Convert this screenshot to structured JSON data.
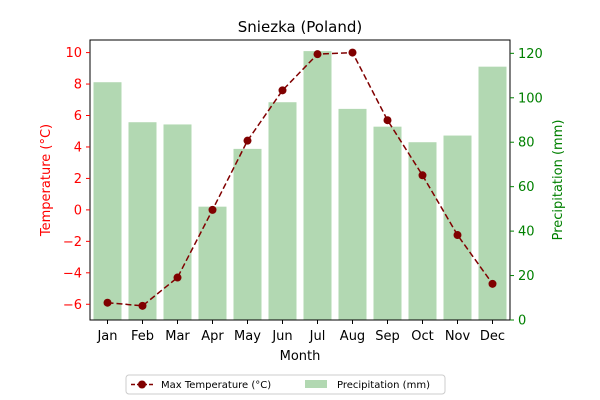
{
  "chart_data": {
    "type": "bar+line",
    "title": "Sniezka (Poland)",
    "xlabel": "Month",
    "ylabel_left": "Temperature (°C)",
    "ylabel_right": "Precipitation (mm)",
    "categories": [
      "Jan",
      "Feb",
      "Mar",
      "Apr",
      "May",
      "Jun",
      "Jul",
      "Aug",
      "Sep",
      "Oct",
      "Nov",
      "Dec"
    ],
    "ylim_left": [
      -7,
      10.8
    ],
    "ylim_right": [
      0,
      126
    ],
    "yticks_left": [
      -6,
      -4,
      -2,
      0,
      2,
      4,
      6,
      8,
      10
    ],
    "yticks_right": [
      0,
      20,
      40,
      60,
      80,
      100,
      120
    ],
    "series": [
      {
        "name": "Max Temperature (°C)",
        "type": "line",
        "axis": "left",
        "color": "#800000",
        "style": "dashed",
        "marker": "circle",
        "values": [
          -5.9,
          -6.1,
          -4.3,
          0.0,
          4.4,
          7.6,
          9.9,
          10.0,
          5.7,
          2.2,
          -1.6,
          -4.7
        ]
      },
      {
        "name": "Precipitation (mm)",
        "type": "bar",
        "axis": "right",
        "color": "#b2d8b2",
        "values": [
          107,
          89,
          88,
          51,
          77,
          98,
          121,
          95,
          87,
          80,
          83,
          114
        ]
      }
    ],
    "left_axis_color": "#ff0000",
    "right_axis_color": "#008000",
    "grid": false,
    "legend_position": "bottom-center"
  }
}
